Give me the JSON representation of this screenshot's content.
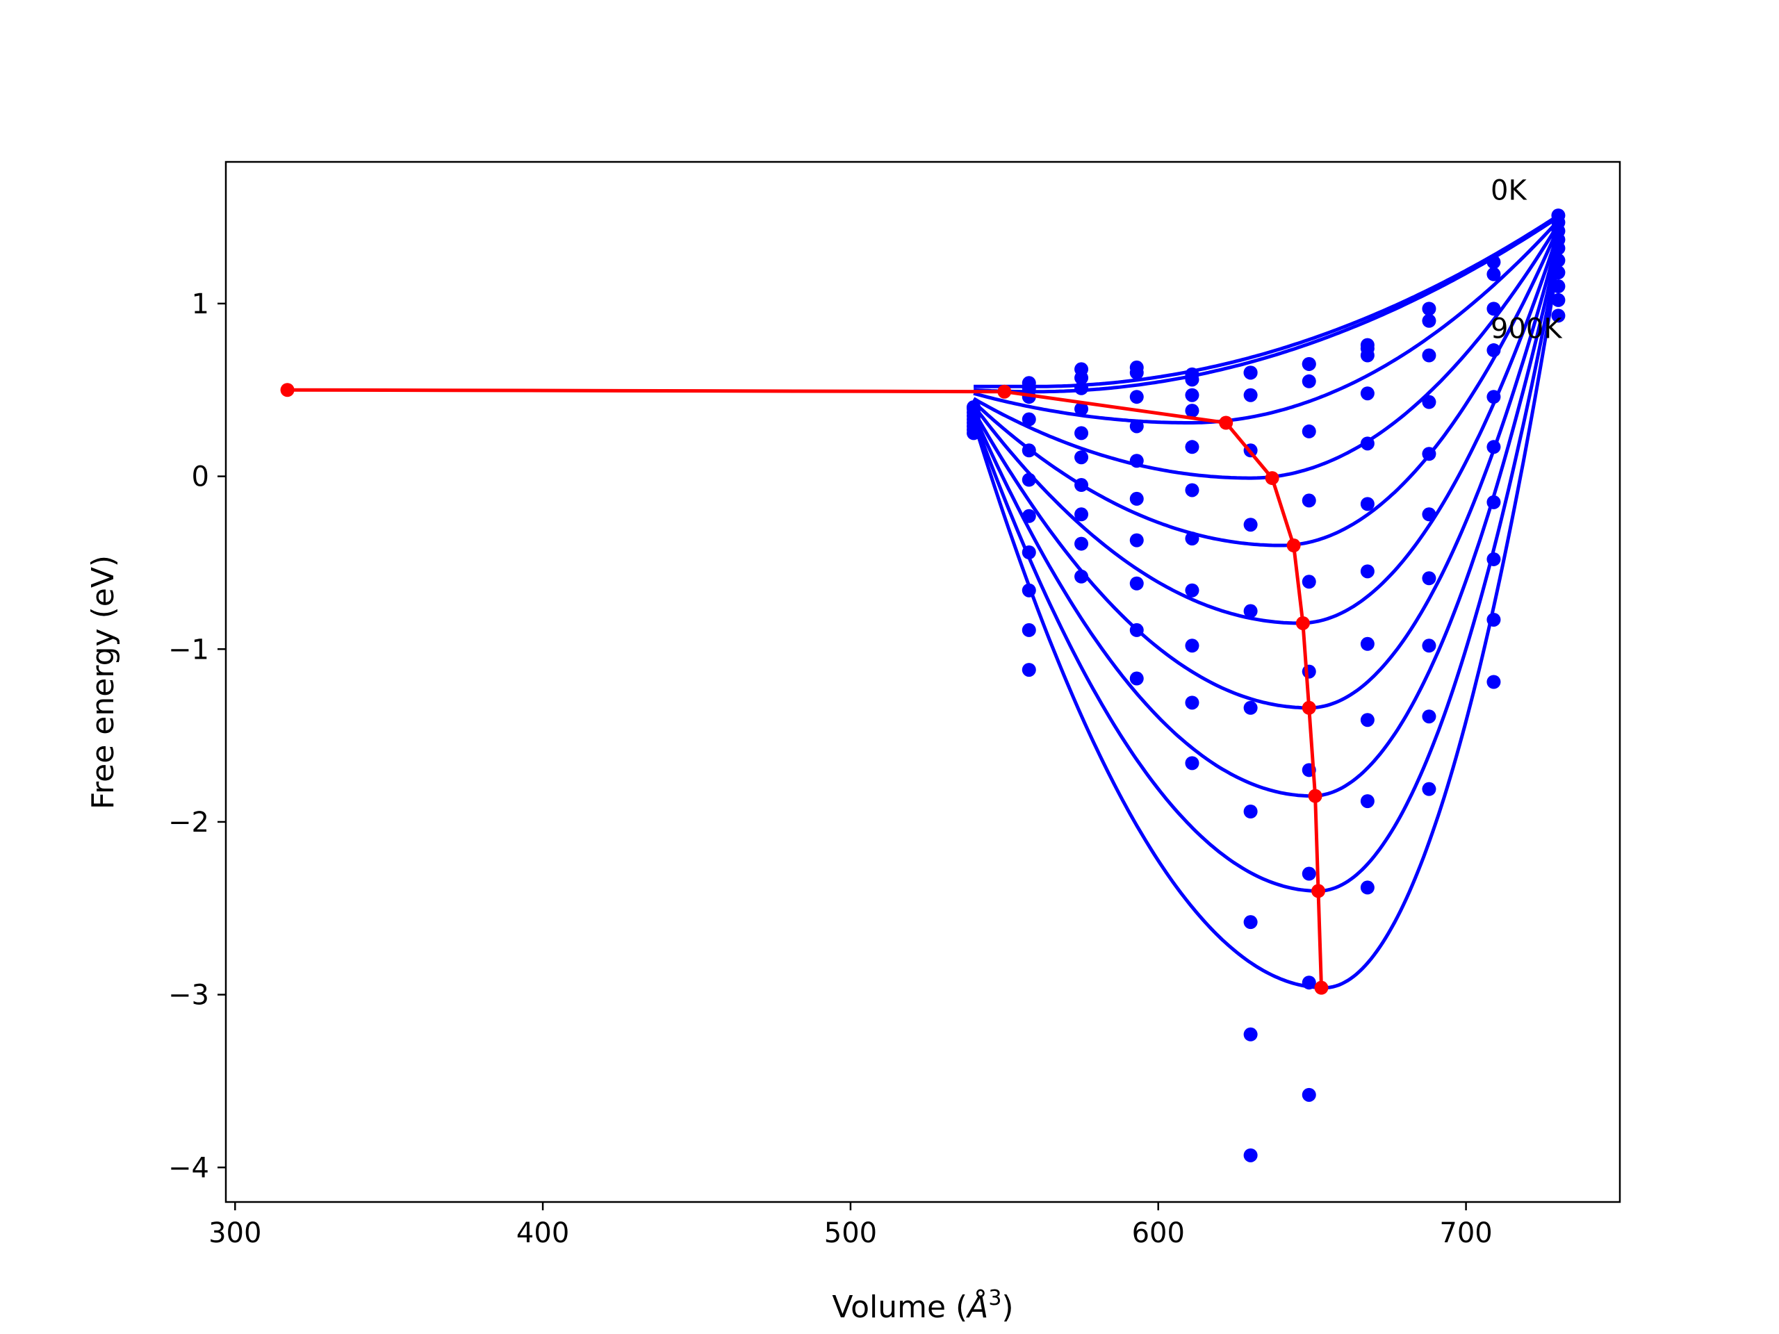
{
  "chart_data": {
    "type": "scatter",
    "xlabel": "Volume (",
    "xlabel_unit": "Å",
    "xlabel_exp": "3",
    "xlabel_close": ")",
    "ylabel": "Free energy (eV)",
    "xlim": [
      297,
      750
    ],
    "ylim": [
      -4.2,
      1.82
    ],
    "xticks": [
      300,
      400,
      500,
      600,
      700
    ],
    "yticks": [
      1,
      0,
      -1,
      -2,
      -3,
      -4
    ],
    "ytick_labels": [
      "1",
      "0",
      "−1",
      "−2",
      "−3",
      "−4"
    ],
    "annotations": [
      {
        "text": "0K",
        "x": 708,
        "y": 1.6
      },
      {
        "text": "900K",
        "x": 708,
        "y": 0.8
      }
    ],
    "colors": {
      "curves": "#0000ff",
      "points": "#0000ff",
      "equilibrium": "#ff0000"
    },
    "points": {
      "volumes": [
        540,
        558,
        575,
        593,
        611,
        630,
        649,
        668,
        688,
        709,
        730
      ],
      "values": [
        [
          0.4,
          0.54,
          0.62,
          0.63,
          0.59,
          0.6,
          0.65,
          0.76,
          0.97,
          1.24,
          1.51
        ],
        [
          0.4,
          0.51,
          0.57,
          0.6,
          0.56,
          0.6,
          0.65,
          0.74,
          0.9,
          1.17,
          1.47
        ],
        [
          0.39,
          0.46,
          0.51,
          0.46,
          0.47,
          0.47,
          0.55,
          0.7,
          0.7,
          0.97,
          1.42
        ],
        [
          0.37,
          0.33,
          0.39,
          0.29,
          0.38,
          0.15,
          0.26,
          0.48,
          0.43,
          0.73,
          1.37
        ],
        [
          0.35,
          0.15,
          0.25,
          0.09,
          0.17,
          -0.28,
          -0.14,
          0.19,
          0.13,
          0.46,
          1.32
        ],
        [
          0.33,
          -0.02,
          0.11,
          -0.13,
          -0.08,
          -0.78,
          -0.61,
          -0.16,
          -0.22,
          0.17,
          1.25
        ],
        [
          0.31,
          -0.23,
          -0.05,
          -0.37,
          -0.36,
          -1.34,
          -1.13,
          -0.55,
          -0.59,
          -0.15,
          1.18
        ],
        [
          0.29,
          -0.44,
          -0.22,
          -0.62,
          -0.66,
          -1.94,
          -1.7,
          -0.97,
          -0.98,
          -0.48,
          1.1
        ],
        [
          0.27,
          -0.66,
          -0.39,
          -0.89,
          -0.98,
          -2.58,
          -2.3,
          -1.41,
          -1.39,
          -0.83,
          1.02
        ],
        [
          0.25,
          -0.89,
          -0.58,
          -1.17,
          -1.31,
          -3.23,
          -2.93,
          -1.88,
          -1.81,
          -1.19,
          0.93
        ],
        [
          null,
          -1.12,
          null,
          null,
          -1.66,
          -3.93,
          -3.58,
          -2.38,
          null,
          null,
          null
        ]
      ]
    },
    "fits": {
      "v_start": 540,
      "v_end": 730,
      "v_min": [
        560,
        560,
        610,
        630,
        640,
        646,
        649,
        650,
        652,
        654
      ],
      "f_min": [
        0.52,
        0.49,
        0.31,
        -0.01,
        -0.4,
        -0.85,
        -1.34,
        -1.85,
        -2.4,
        -2.96
      ],
      "f_left": [
        0.52,
        0.5,
        0.48,
        0.45,
        0.43,
        0.41,
        0.38,
        0.36,
        0.34,
        0.32
      ],
      "f_right": [
        1.51,
        1.5,
        1.48,
        1.46,
        1.44,
        1.41,
        1.38,
        1.34,
        1.3,
        1.25
      ]
    },
    "equilibrium": {
      "name": "",
      "x": [
        317,
        550,
        622,
        637,
        644,
        647,
        649,
        651,
        652,
        653
      ],
      "y": [
        0.5,
        0.49,
        0.31,
        -0.01,
        -0.4,
        -0.85,
        -1.34,
        -1.85,
        -2.4,
        -2.96
      ]
    }
  }
}
